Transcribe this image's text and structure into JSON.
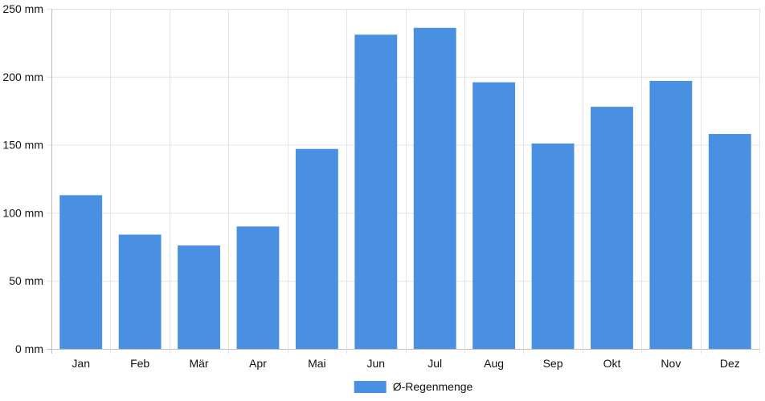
{
  "chart_data": {
    "type": "bar",
    "categories": [
      "Jan",
      "Feb",
      "Mär",
      "Apr",
      "Mai",
      "Jun",
      "Jul",
      "Aug",
      "Sep",
      "Okt",
      "Nov",
      "Dez"
    ],
    "series": [
      {
        "name": "Ø-Regenmenge",
        "values": [
          113,
          84,
          76,
          90,
          147,
          231,
          236,
          196,
          151,
          178,
          197,
          158
        ],
        "color": "#4a90e2"
      }
    ],
    "y_ticks": [
      "0 mm",
      "50 mm",
      "100 mm",
      "150 mm",
      "200 mm",
      "250 mm"
    ],
    "ylim": [
      0,
      250
    ],
    "y_step": 50,
    "grid": true,
    "legend_position": "bottom-center",
    "grid_color": "#e3e3e3",
    "axis_color": "#bbbbbb"
  }
}
